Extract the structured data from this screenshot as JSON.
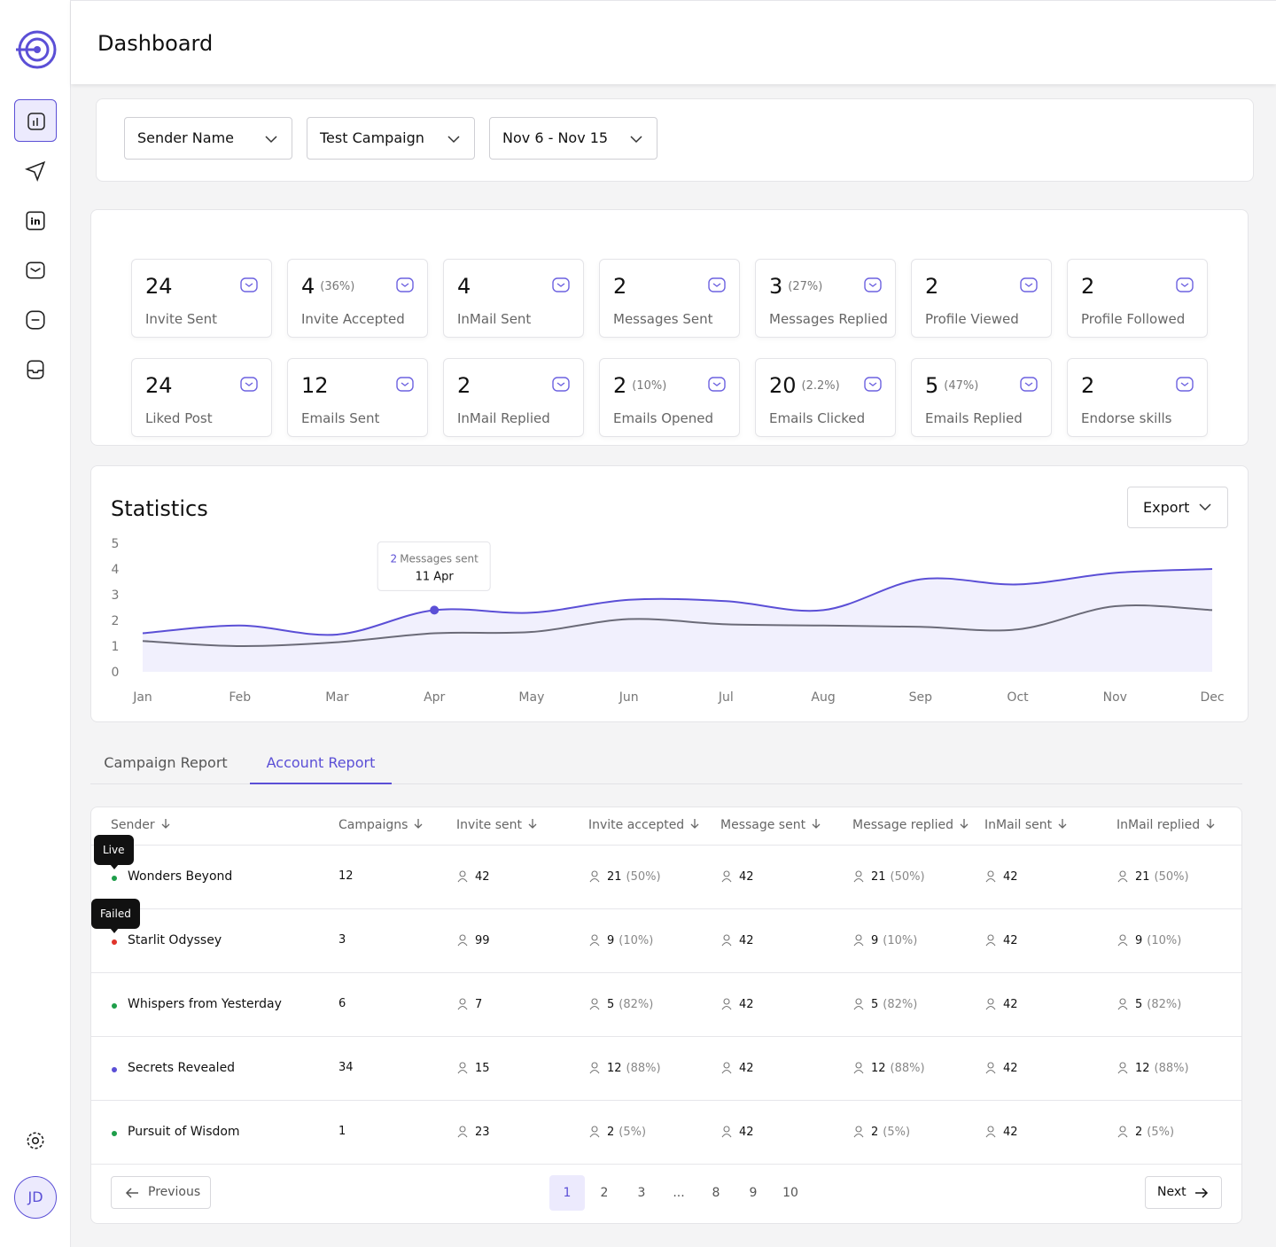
{
  "header": {
    "title": "Dashboard"
  },
  "filters": [
    "Sender Name",
    "Test Campaign",
    "Nov 6 - Nov 15"
  ],
  "stats": [
    {
      "value": 24,
      "label": "Invite Sent"
    },
    {
      "value": 4,
      "pct": "(36%)",
      "label": "Invite Accepted"
    },
    {
      "value": 4,
      "label": "InMail Sent"
    },
    {
      "value": 2,
      "label": "Messages Sent"
    },
    {
      "value": 3,
      "pct": "(27%)",
      "label": "Messages Replied"
    },
    {
      "value": 2,
      "label": "Profile Viewed"
    },
    {
      "value": 2,
      "label": "Profile Followed"
    },
    {
      "value": 24,
      "label": "Liked Post"
    },
    {
      "value": 12,
      "label": "Emails Sent"
    },
    {
      "value": 2,
      "label": "InMail Replied"
    },
    {
      "value": 2,
      "pct": "(10%)",
      "label": "Emails Opened"
    },
    {
      "value": 20,
      "pct": "(2.2%)",
      "label": "Emails Clicked"
    },
    {
      "value": 5,
      "pct": "(47%)",
      "label": "Emails Replied"
    },
    {
      "value": 2,
      "label": "Endorse skills"
    }
  ],
  "export": "Export",
  "chart_data": {
    "type": "line",
    "title": "Statistics",
    "categories": [
      "Jan",
      "Feb",
      "Mar",
      "Apr",
      "May",
      "Jun",
      "Jul",
      "Aug",
      "Sep",
      "Oct",
      "Nov",
      "Dec"
    ],
    "series": [
      {
        "color": "#5b4fd6",
        "values": [
          1.5,
          1.8,
          1.45,
          2.4,
          2.3,
          2.8,
          2.75,
          2.4,
          3.6,
          3.4,
          3.85,
          4.0
        ]
      },
      {
        "color": "#6b6b78",
        "values": [
          1.2,
          1.0,
          1.15,
          1.5,
          1.55,
          2.05,
          1.85,
          1.8,
          1.75,
          1.65,
          2.55,
          2.4
        ]
      }
    ],
    "ylim": [
      0,
      5
    ],
    "yticks": [
      0,
      1,
      2,
      3,
      4,
      5
    ],
    "area": true,
    "annotation": {
      "count": 2,
      "text": "Messages sent",
      "date": "11 Apr"
    }
  },
  "tabs": [
    "Campaign Report",
    "Account Report"
  ],
  "active_tab": 1,
  "table": {
    "columns": [
      "Sender",
      "Campaigns",
      "Invite sent",
      "Invite accepted",
      "Message sent",
      "Message replied",
      "InMail sent",
      "InMail replied"
    ],
    "rows": [
      {
        "status": "#1e9e4a",
        "tooltip": "Live",
        "sender": "Wonders Beyond",
        "campaigns": 12,
        "invite_sent": 42,
        "invite_accepted": 21,
        "invite_accepted_pct": "(50%)",
        "message_sent": 42,
        "message_replied": 21,
        "message_replied_pct": "(50%)",
        "inmail_sent": 42,
        "inmail_replied": 21,
        "inmail_replied_pct": "(50%)"
      },
      {
        "status": "#e0342b",
        "tooltip": "Failed",
        "sender": "Starlit Odyssey",
        "campaigns": 3,
        "invite_sent": 99,
        "invite_accepted": 9,
        "invite_accepted_pct": "(10%)",
        "message_sent": 42,
        "message_replied": 9,
        "message_replied_pct": "(10%)",
        "inmail_sent": 42,
        "inmail_replied": 9,
        "inmail_replied_pct": "(10%)"
      },
      {
        "status": "#1e9e4a",
        "sender": "Whispers from Yesterday",
        "campaigns": 6,
        "invite_sent": 7,
        "invite_accepted": 5,
        "invite_accepted_pct": "(82%)",
        "message_sent": 42,
        "message_replied": 5,
        "message_replied_pct": "(82%)",
        "inmail_sent": 42,
        "inmail_replied": 5,
        "inmail_replied_pct": "(82%)"
      },
      {
        "status": "#5b4fd6",
        "sender": "Secrets Revealed",
        "campaigns": 34,
        "invite_sent": 15,
        "invite_accepted": 12,
        "invite_accepted_pct": "(88%)",
        "message_sent": 42,
        "message_replied": 12,
        "message_replied_pct": "(88%)",
        "inmail_sent": 42,
        "inmail_replied": 12,
        "inmail_replied_pct": "(88%)"
      },
      {
        "status": "#1e9e4a",
        "sender": "Pursuit of Wisdom",
        "campaigns": 1,
        "invite_sent": 23,
        "invite_accepted": 2,
        "invite_accepted_pct": "(5%)",
        "message_sent": 42,
        "message_replied": 2,
        "message_replied_pct": "(5%)",
        "inmail_sent": 42,
        "inmail_replied": 2,
        "inmail_replied_pct": "(5%)"
      }
    ]
  },
  "pagination": {
    "previous": "Previous",
    "next": "Next",
    "pages": [
      1,
      2,
      3,
      "...",
      8,
      9,
      10
    ],
    "current": 0
  },
  "user": {
    "initials": "JD"
  }
}
